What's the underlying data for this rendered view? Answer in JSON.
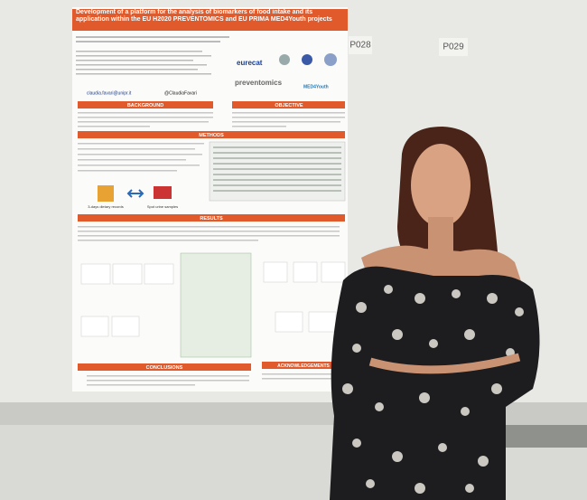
{
  "board_labels": [
    "P028",
    "P029"
  ],
  "poster": {
    "title": "Development of a platform for the analysis of biomarkers of food intake and its application within the EU H2020 PREVENTOMICS and EU PRIMA MED4Youth projects",
    "logos": [
      "eurecat",
      "preventomics",
      "MED4Youth"
    ],
    "contacts": [
      "claudia.favari@unipr.it",
      "@ClaudiaFavari"
    ],
    "sections": [
      "BACKGROUND",
      "OBJECTIVE",
      "METHODS",
      "RESULTS",
      "CONCLUSIONS",
      "ACKNOWLEDGEMENTS"
    ],
    "methods_labels": [
      "3-days dietary records",
      "Spot urine samples"
    ]
  }
}
